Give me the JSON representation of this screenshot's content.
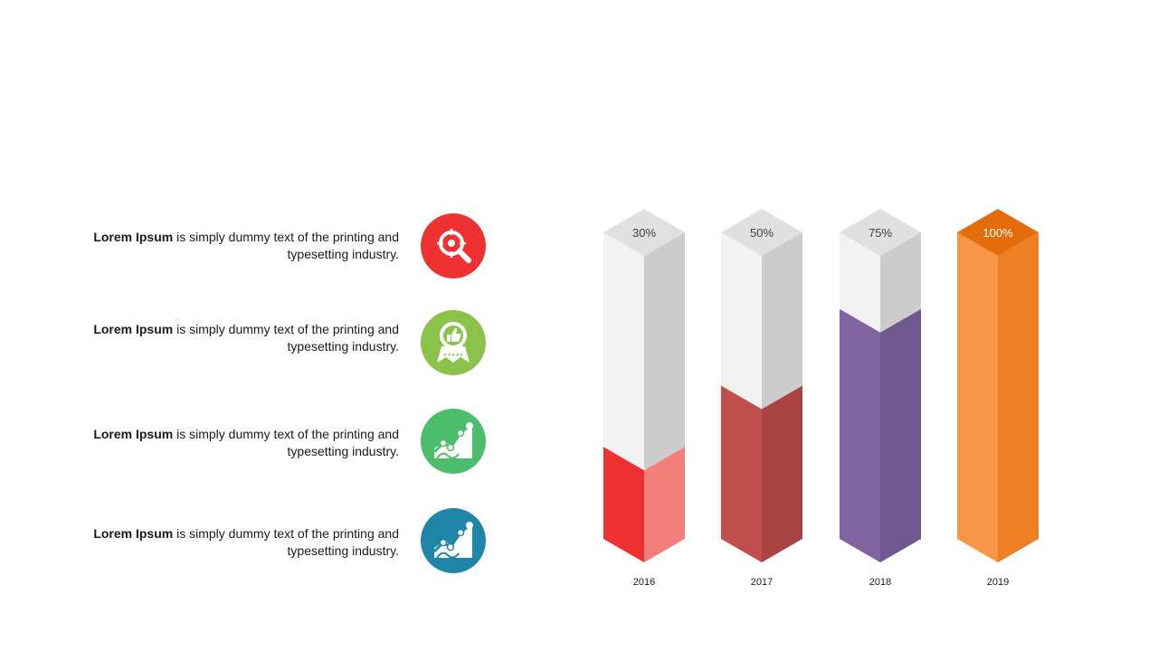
{
  "items": [
    {
      "bold": "Lorem Ipsum",
      "rest": " is simply dummy  text of the printing and",
      "line2": "typesetting industry.",
      "icon": "target-search-icon",
      "color": "#ee3131"
    },
    {
      "bold": "Lorem Ipsum",
      "rest": " is simply dummy  text of the printing and",
      "line2": "typesetting industry.",
      "icon": "thumbs-up-badge-icon",
      "color": "#8bc34a"
    },
    {
      "bold": "Lorem Ipsum",
      "rest": " is simply dummy  text of the printing and",
      "line2": "typesetting industry.",
      "icon": "growth-chart-icon",
      "color": "#4cbd6a"
    },
    {
      "bold": "Lorem Ipsum",
      "rest": " is simply dummy  text of the printing and",
      "line2": "typesetting industry.",
      "icon": "growth-chart-icon",
      "color": "#1f86a8"
    }
  ],
  "chart_data": {
    "type": "bar",
    "categories": [
      "2016",
      "2017",
      "2018",
      "2019"
    ],
    "values": [
      30,
      50,
      75,
      100
    ],
    "labels": [
      "30%",
      "50%",
      "75%",
      "100%"
    ],
    "ylim": [
      0,
      100
    ],
    "grid": false,
    "colors": [
      {
        "front": "#ee3131",
        "side": "#f47e7a",
        "top": "#ee3131"
      },
      {
        "front": "#c0504d",
        "side": "#a94442",
        "top": "#c0504d"
      },
      {
        "front": "#8064a2",
        "side": "#6f578f",
        "top": "#8064a2"
      },
      {
        "front": "#f79646",
        "side": "#ed7f26",
        "top": "#e46c0a"
      }
    ],
    "empty_colors": {
      "front": "#f2f2f2",
      "side": "#cccccc",
      "top": "#e0e0e0"
    }
  }
}
